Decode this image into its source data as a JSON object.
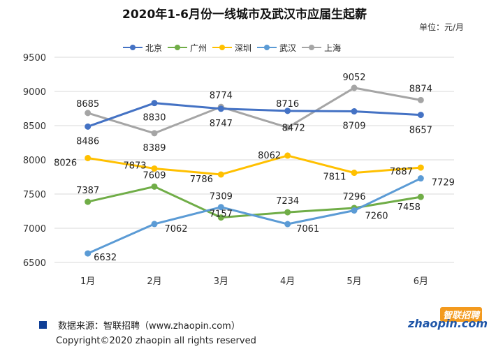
{
  "header": {
    "title": "2020年1-6月份一线城市及武汉市应届生起薪",
    "unit": "单位：元/月"
  },
  "footer": {
    "source": "数据来源：智联招聘（www.zhaopin.com）",
    "copyright": "Copyright©2020  zhaopin all rights reserved",
    "logo_cn": "智联招聘",
    "logo_en": "zhaopin.com"
  },
  "colors": {
    "北京": "#4472c4",
    "广州": "#70ad47",
    "深圳": "#ffc000",
    "武汉": "#5b9bd5",
    "上海": "#a5a5a5",
    "source_square": "#0f3f96",
    "logo_orange": "#f39a1e"
  },
  "chart_data": {
    "type": "line",
    "title": "2020年1-6月份一线城市及武汉市应届生起薪",
    "xlabel": "",
    "ylabel": "",
    "unit": "单位：元/月",
    "categories": [
      "1月",
      "2月",
      "3月",
      "4月",
      "5月",
      "6月"
    ],
    "ylim": [
      6500,
      9500
    ],
    "yticks": [
      6500,
      7000,
      7500,
      8000,
      8500,
      9000,
      9500
    ],
    "legend_position": "top",
    "grid": "horizontal",
    "series": [
      {
        "name": "北京",
        "values": [
          8486,
          8830,
          8747,
          8716,
          8709,
          8657
        ]
      },
      {
        "name": "广州",
        "values": [
          7387,
          7609,
          7157,
          7234,
          7296,
          7458
        ]
      },
      {
        "name": "深圳",
        "values": [
          8026,
          7873,
          7786,
          8062,
          7811,
          7887
        ]
      },
      {
        "name": "武汉",
        "values": [
          6632,
          7062,
          7309,
          7061,
          7260,
          7729
        ]
      },
      {
        "name": "上海",
        "values": [
          8685,
          8389,
          8774,
          8472,
          9052,
          8874
        ]
      }
    ]
  }
}
